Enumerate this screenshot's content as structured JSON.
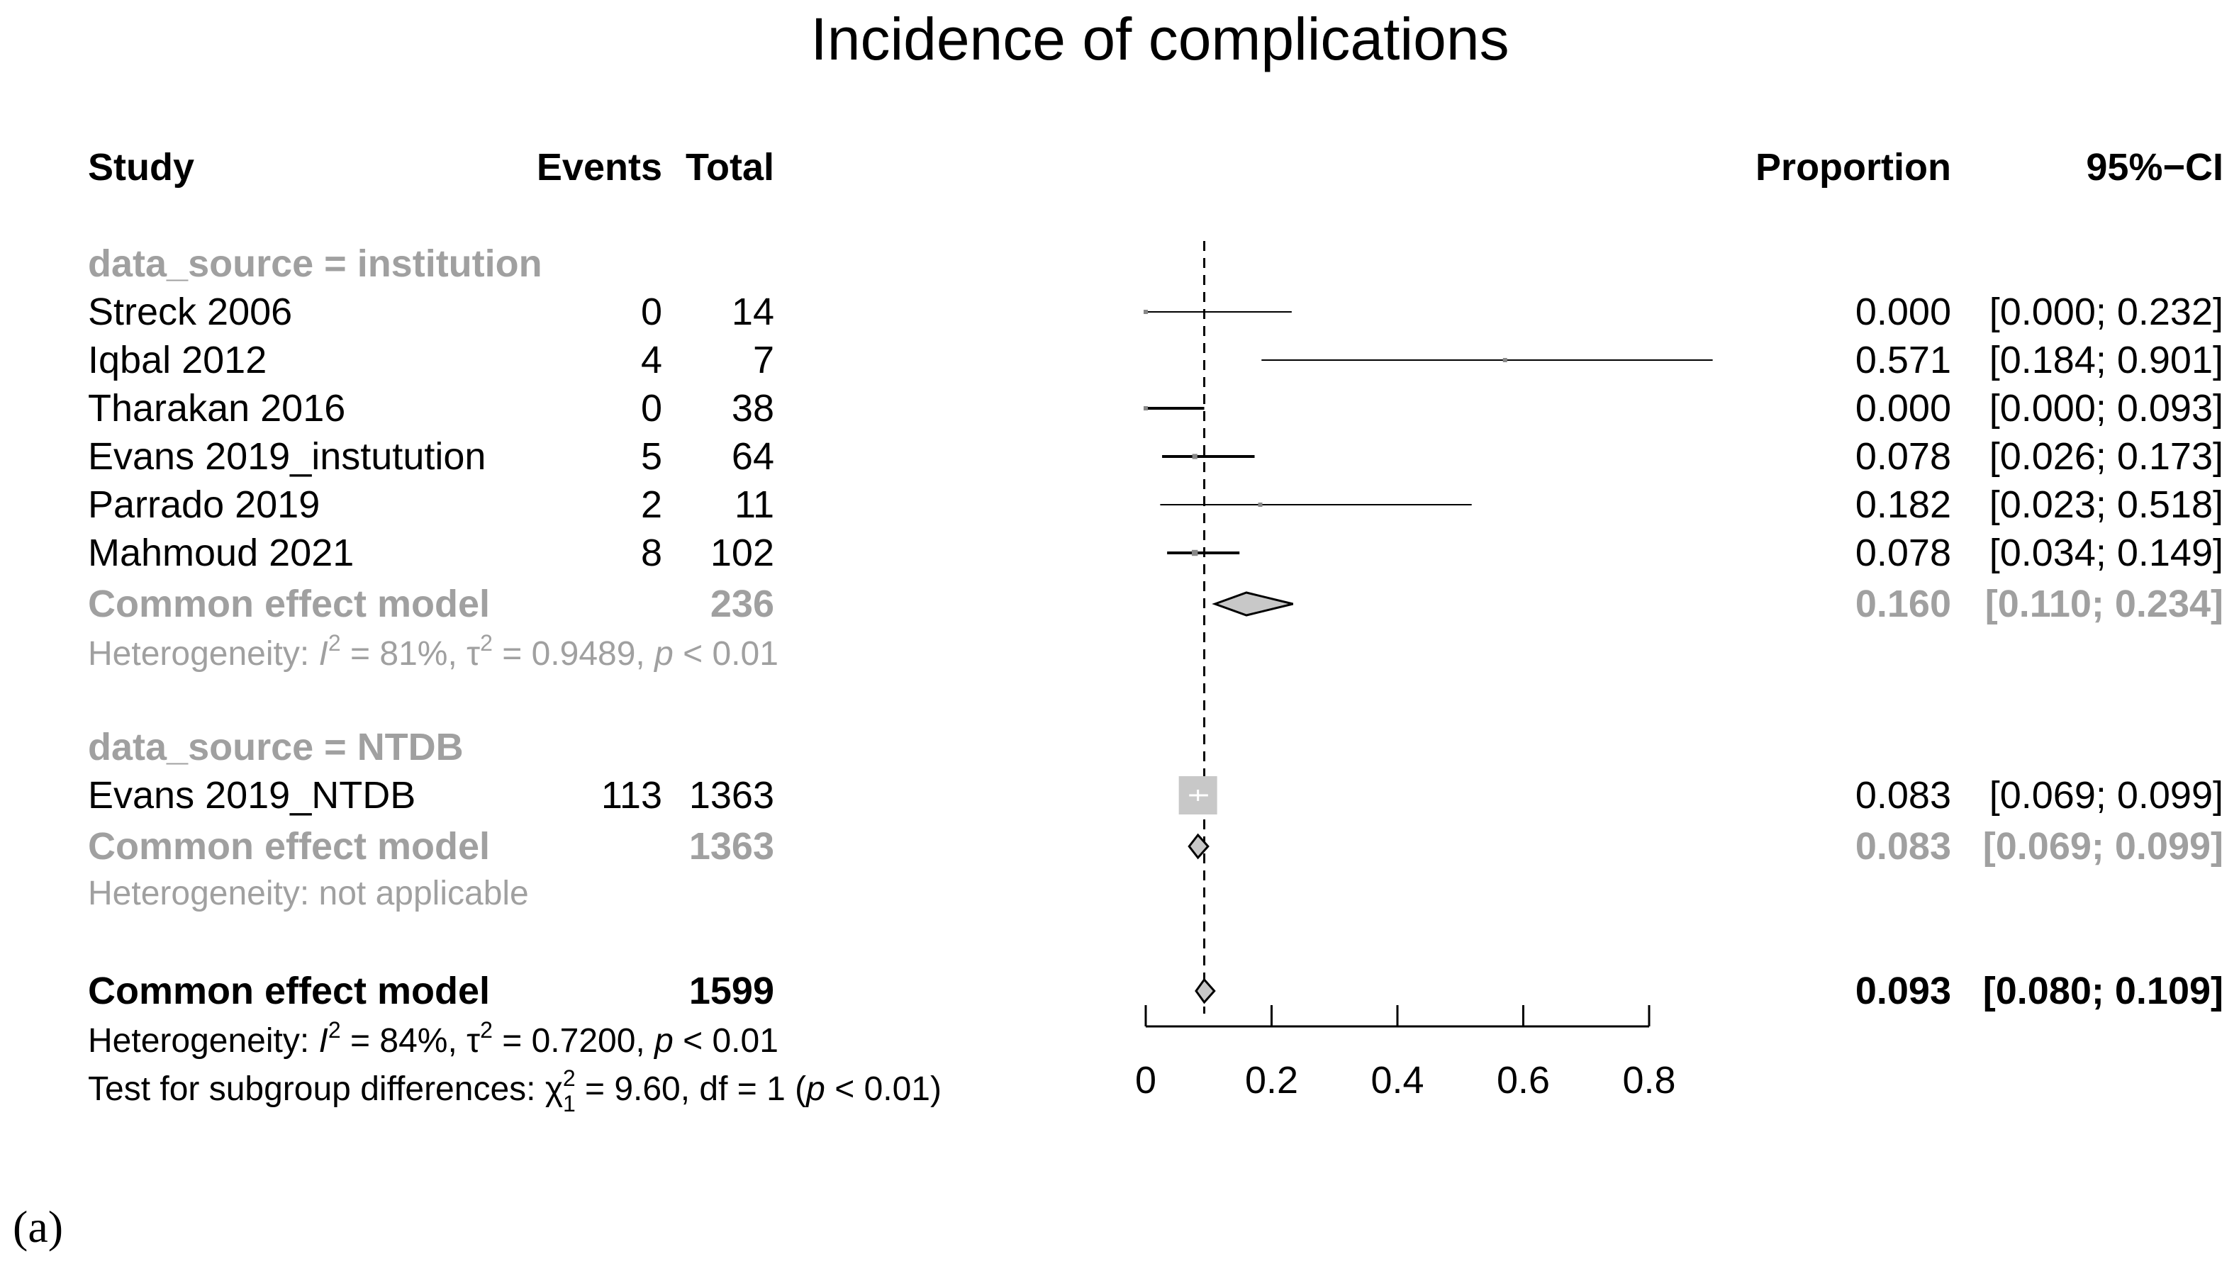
{
  "panel_label": "(a)",
  "chart_data": {
    "type": "forest",
    "title": "Incidence of complications",
    "columns": {
      "study": "Study",
      "events": "Events",
      "total": "Total",
      "proportion": "Proportion",
      "ci": "95%−CI"
    },
    "xlim": [
      0,
      0.8
    ],
    "x_ticks": [
      0,
      0.2,
      0.4,
      0.6,
      0.8
    ],
    "x_tick_labels": [
      "0",
      "0.2",
      "0.4",
      "0.6",
      "0.8"
    ],
    "reference_line": 0.093,
    "colors": {
      "main": "#000000",
      "subgroup": "#a0a0a0",
      "square_subgroup": "#c8c8c8",
      "diamond_fill": "#c8c8c8"
    },
    "subgroups": [
      {
        "label": "data_source = institution",
        "studies": [
          {
            "study": "Streck 2006",
            "events": "0",
            "total": "14",
            "proportion": 0.0,
            "lower": 0.0,
            "upper": 0.232,
            "prop_text": "0.000",
            "ci_text": "[0.000; 0.232]",
            "weight": 0.2
          },
          {
            "study": "Iqbal 2012",
            "events": "4",
            "total": "7",
            "proportion": 0.571,
            "lower": 0.184,
            "upper": 0.901,
            "prop_text": "0.571",
            "ci_text": "[0.184; 0.901]",
            "weight": 0.25
          },
          {
            "study": "Tharakan 2016",
            "events": "0",
            "total": "38",
            "proportion": 0.0,
            "lower": 0.0,
            "upper": 0.093,
            "prop_text": "0.000",
            "ci_text": "[0.000; 0.093]",
            "weight": 0.2
          },
          {
            "study": "Evans 2019_instutution",
            "events": "5",
            "total": "64",
            "proportion": 0.078,
            "lower": 0.026,
            "upper": 0.173,
            "prop_text": "0.078",
            "ci_text": "[0.026; 0.173]",
            "weight": 0.3
          },
          {
            "study": "Parrado 2019",
            "events": "2",
            "total": "11",
            "proportion": 0.182,
            "lower": 0.023,
            "upper": 0.518,
            "prop_text": "0.182",
            "ci_text": "[0.023; 0.518]",
            "weight": 0.2
          },
          {
            "study": "Mahmoud 2021",
            "events": "8",
            "total": "102",
            "proportion": 0.078,
            "lower": 0.034,
            "upper": 0.149,
            "prop_text": "0.078",
            "ci_text": "[0.034; 0.149]",
            "weight": 0.35
          }
        ],
        "pooled": {
          "label": "Common effect model",
          "total": "236",
          "estimate": 0.16,
          "lower": 0.11,
          "upper": 0.234,
          "prop_text": "0.160",
          "ci_text": "[0.110; 0.234]"
        },
        "heterogeneity": {
          "prefix": "Heterogeneity: ",
          "i2_symbol": "I",
          "sup": "2",
          "i2_value": " = 81%, ",
          "tau_symbol": "τ",
          "tau_value": " = 0.9489, ",
          "p_symbol": "p",
          "p_value": " < 0.01"
        }
      },
      {
        "label": "data_source = NTDB",
        "studies": [
          {
            "study": "Evans 2019_NTDB",
            "events": "113",
            "total": "1363",
            "proportion": 0.083,
            "lower": 0.069,
            "upper": 0.099,
            "prop_text": "0.083",
            "ci_text": "[0.069; 0.099]",
            "weight": 1
          }
        ],
        "pooled": {
          "label": "Common effect model",
          "total": "1363",
          "estimate": 0.083,
          "lower": 0.069,
          "upper": 0.099,
          "prop_text": "0.083",
          "ci_text": "[0.069; 0.099]"
        },
        "heterogeneity_text": "Heterogeneity: not applicable"
      }
    ],
    "overall": {
      "label": "Common effect model",
      "total": "1599",
      "estimate": 0.093,
      "lower": 0.08,
      "upper": 0.109,
      "prop_text": "0.093",
      "ci_text": "[0.080; 0.109]",
      "heterogeneity": {
        "prefix": "Heterogeneity: ",
        "i2_symbol": "I",
        "sup": "2",
        "i2_value": " = 84%, ",
        "tau_symbol": "τ",
        "tau_value": " = 0.7200, ",
        "p_symbol": "p",
        "p_value": " < 0.01"
      },
      "subgroup_test": {
        "prefix": "Test for subgroup differences: ",
        "chi_symbol": "χ",
        "sub": "1",
        "sup": "2",
        "value": " = 9.60, df = 1 (",
        "p_symbol": "p",
        "p_value": " < 0.01)"
      }
    }
  }
}
